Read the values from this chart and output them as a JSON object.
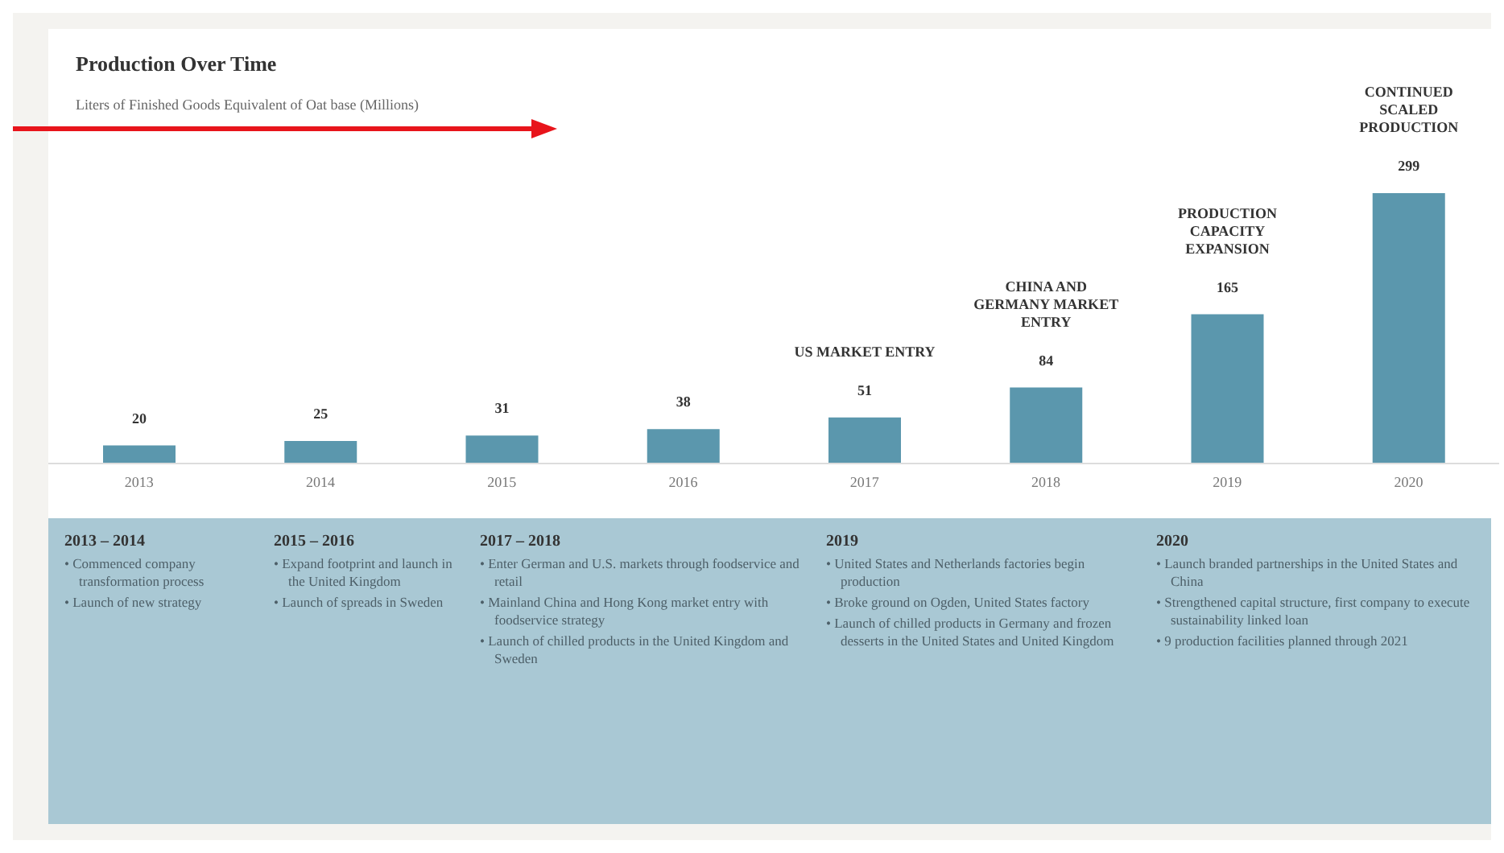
{
  "chart_data": {
    "type": "bar",
    "title": "Production Over Time",
    "subtitle": "Liters of Finished Goods Equivalent of Oat base (Millions)",
    "categories": [
      "2013",
      "2014",
      "2015",
      "2016",
      "2017",
      "2018",
      "2019",
      "2020"
    ],
    "values": [
      20,
      25,
      31,
      38,
      51,
      84,
      165,
      299
    ],
    "color": "#5b97ad",
    "data_labels": true,
    "grid": false,
    "legend": false,
    "annotations": [
      "US MARKET ENTRY",
      "CHINA AND GERMANY MARKET ENTRY",
      "PRODUCTION CAPACITY EXPANSION",
      "CONTINUED SCALED PRODUCTION",
      "2013 – 2014\n• Commenced company transformation process\n• Launch of new strategy",
      "2015 – 2016\n• Expand footprint and launch in the United Kingdom\n• Launch of spreads in Sweden",
      "2017 – 2018\n• Enter German and U.S. markets through foodservice and retail\n• Mainland China and Hong Kong market entry with foodservice strategy\n• Launch of chilled products in the United Kingdom and Sweden",
      "2019\n• United States and Netherlands factories begin production\n• Broke ground on Ogden, United States factory\n• Launch of chilled products in Germany and frozen desserts in the United States and United Kingdom",
      "2020\n• Launch branded partnerships in the United States and China\n• Strengthened capital structure, first company to execute sustainability linked loan\n• 9 production facilities planned through 2021"
    ]
  }
}
